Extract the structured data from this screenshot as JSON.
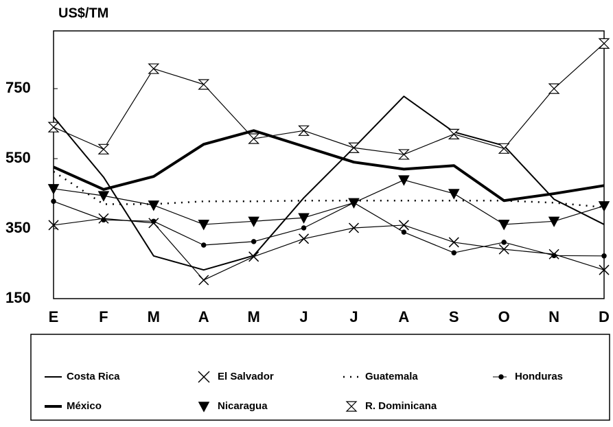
{
  "chart_data": {
    "type": "line",
    "y_axis_label": "US$/TM",
    "categories": [
      "E",
      "F",
      "M",
      "A",
      "M",
      "J",
      "J",
      "A",
      "S",
      "O",
      "N",
      "D"
    ],
    "ylim": [
      150,
      915
    ],
    "yticks": [
      150,
      350,
      550,
      750
    ],
    "grid": false,
    "legend": "bottom",
    "series": [
      {
        "name": "Costa Rica",
        "color": "#000000",
        "style": "solid",
        "width": 2,
        "marker": "none",
        "values": [
          669,
          497,
          272,
          232,
          273,
          438,
          581,
          728,
          626,
          587,
          434,
          362
        ]
      },
      {
        "name": "El Salvador",
        "color": "#000000",
        "style": "solid",
        "width": 1.2,
        "marker": "x",
        "values": [
          360,
          379,
          366,
          203,
          270,
          321,
          352,
          360,
          311,
          291,
          277,
          232
        ]
      },
      {
        "name": "Guatemala",
        "color": "#000000",
        "style": "dotted",
        "width": 2.5,
        "marker": "none",
        "values": [
          513,
          420,
          420,
          428,
          428,
          430,
          430,
          430,
          430,
          430,
          424,
          411
        ]
      },
      {
        "name": "Honduras",
        "color": "#000000",
        "style": "solid",
        "width": 1.2,
        "marker": "dot",
        "values": [
          428,
          375,
          371,
          303,
          313,
          352,
          424,
          340,
          281,
          311,
          273,
          272
        ]
      },
      {
        "name": "México",
        "color": "#000000",
        "style": "solid",
        "width": 4,
        "marker": "none",
        "values": [
          526,
          462,
          499,
          591,
          630,
          585,
          540,
          520,
          530,
          430,
          450,
          473
        ]
      },
      {
        "name": "Nicaragua",
        "color": "#000000",
        "style": "solid",
        "width": 1.2,
        "marker": "triangle-down",
        "values": [
          464,
          444,
          417,
          362,
          371,
          381,
          424,
          489,
          450,
          362,
          371,
          415
        ]
      },
      {
        "name": "R. Dominicana",
        "color": "#000000",
        "style": "solid",
        "width": 1.2,
        "marker": "hourglass",
        "values": [
          640,
          577,
          807,
          762,
          607,
          630,
          581,
          562,
          620,
          579,
          750,
          879
        ]
      }
    ]
  }
}
